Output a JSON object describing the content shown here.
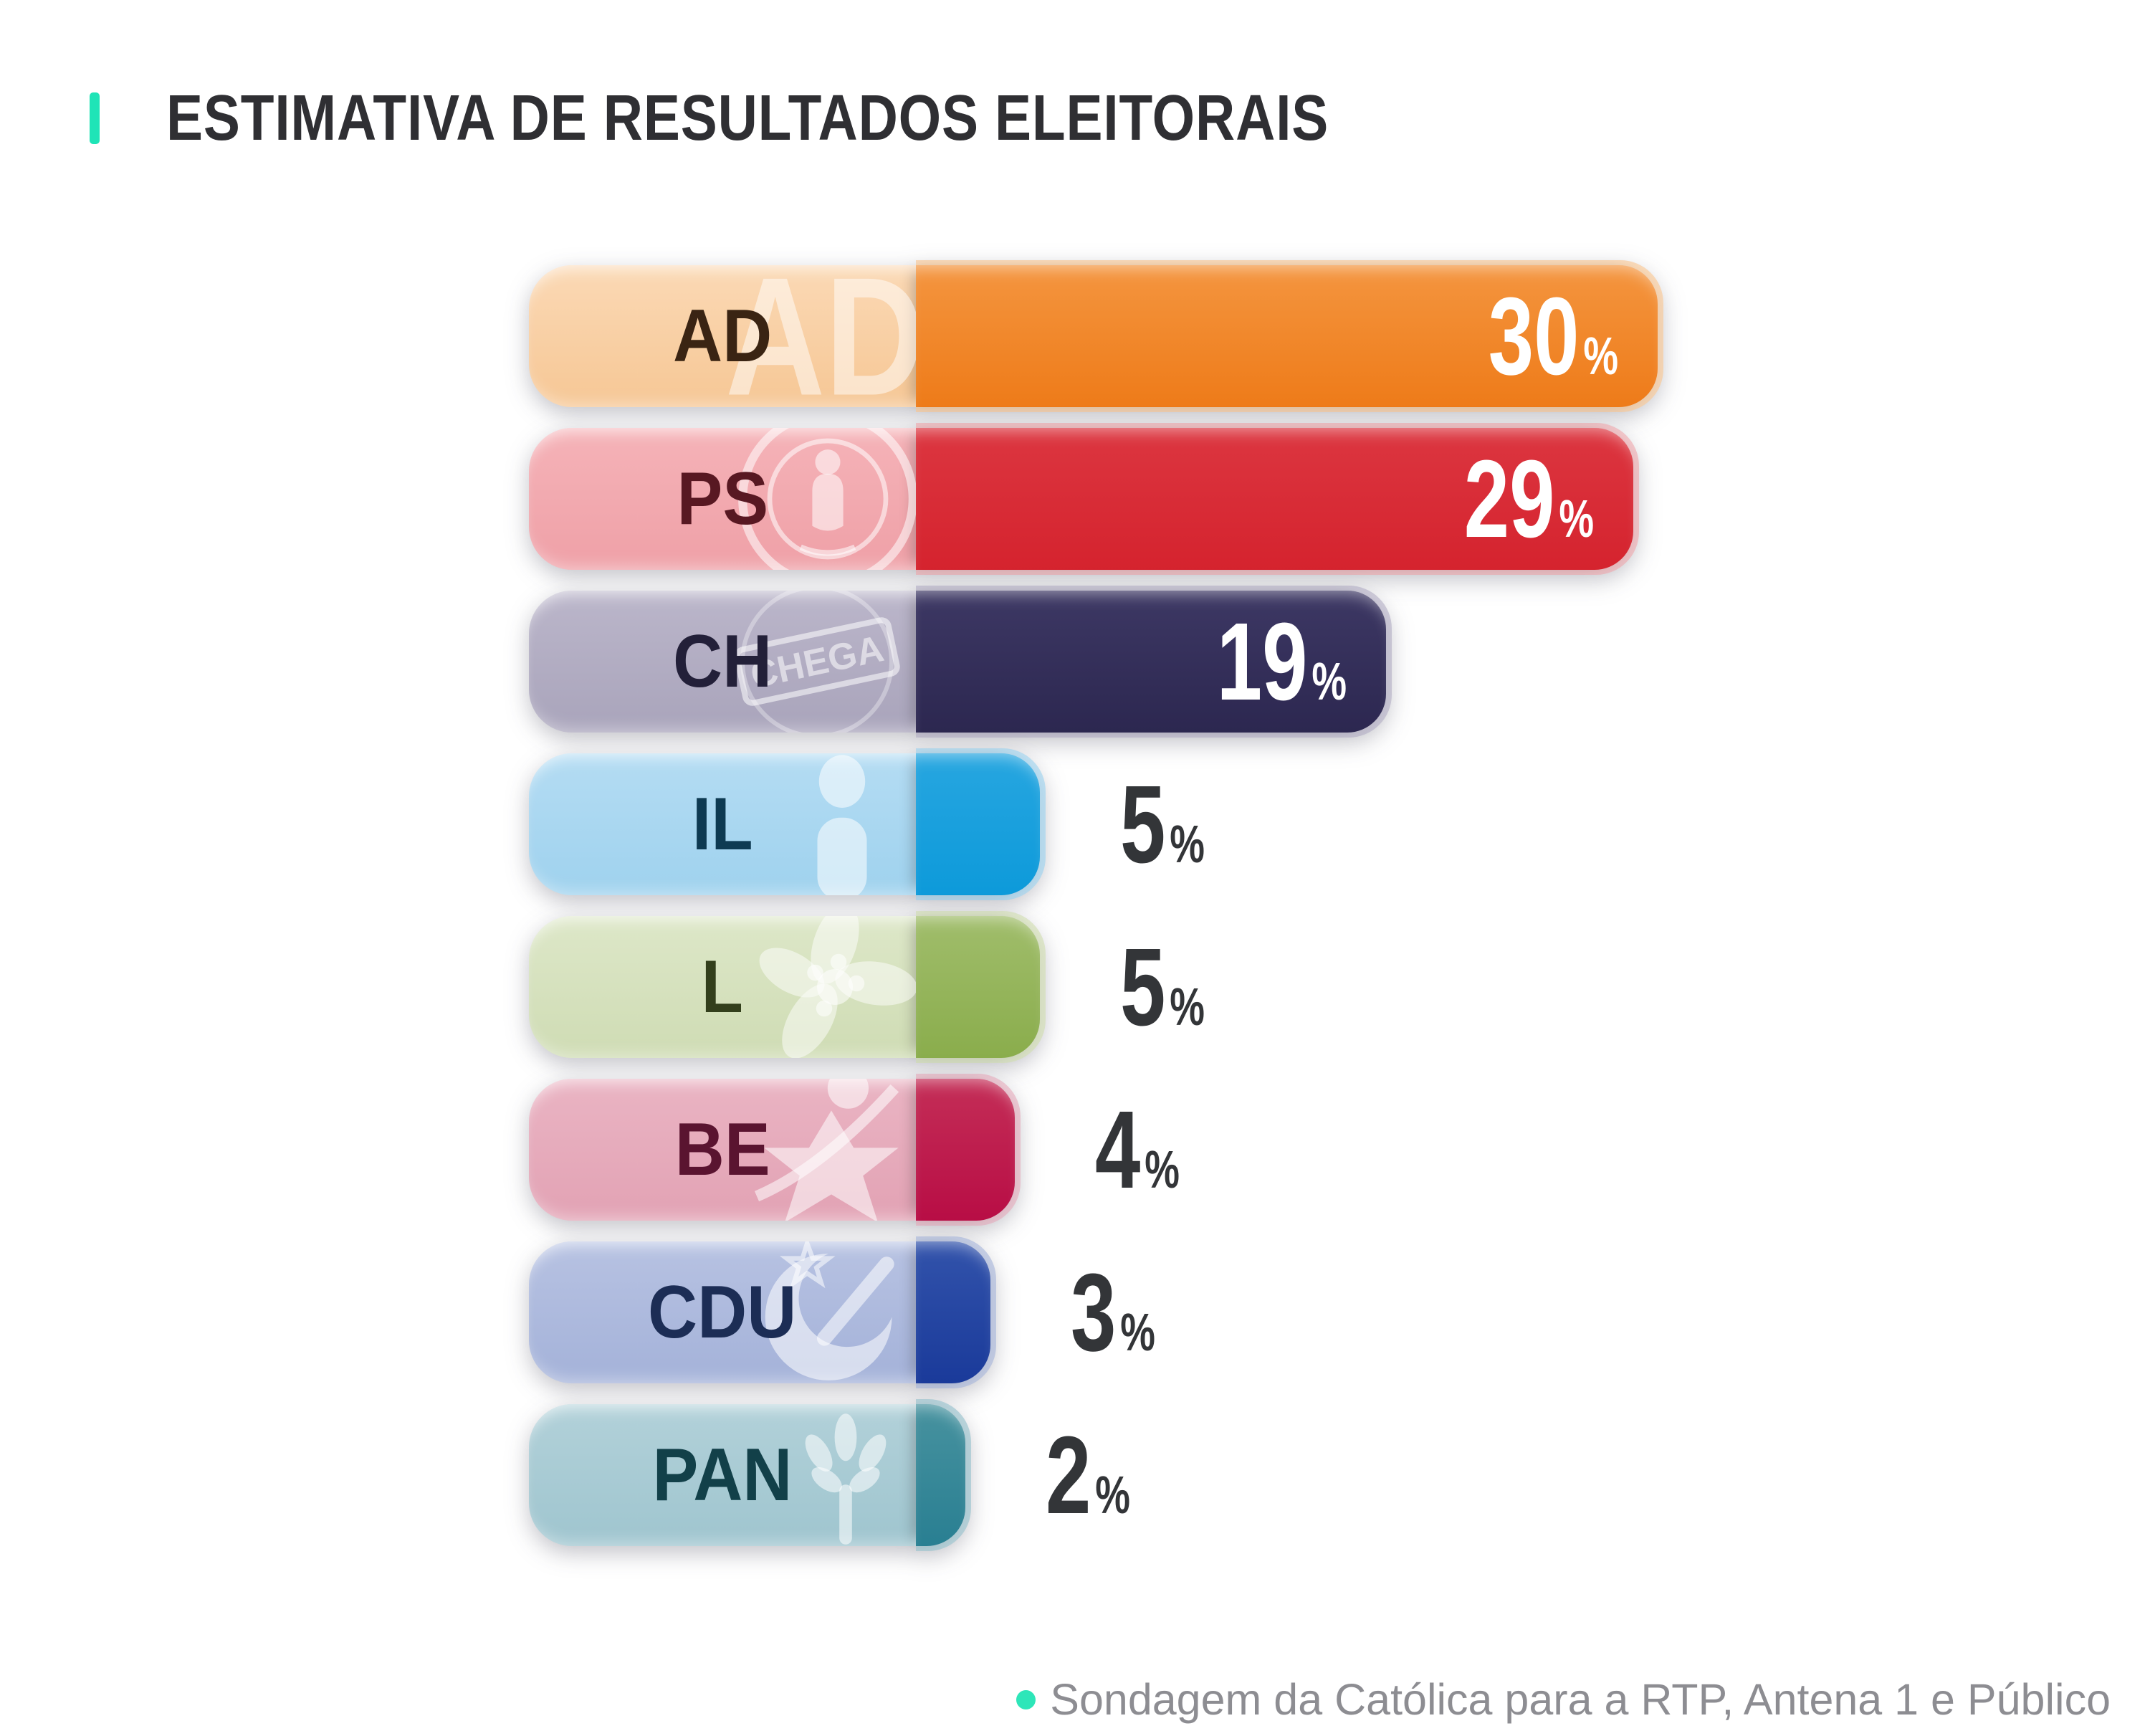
{
  "header": {
    "title": "ESTIMATIVA DE RESULTADOS ELEITORAIS",
    "accent_color": "#1FE4B7"
  },
  "source_note": {
    "text": "Sondagem da Católica para a RTP, Antena 1 e Público",
    "bullet_color": "#2EE6B9",
    "text_color": "#8D8D92"
  },
  "chart_data": {
    "type": "bar",
    "orientation": "horizontal",
    "title": "ESTIMATIVA DE RESULTADOS ELEITORAIS",
    "unit": "%",
    "categories": [
      "AD",
      "PS",
      "CH",
      "IL",
      "L",
      "BE",
      "CDU",
      "PAN"
    ],
    "values": [
      30,
      29,
      19,
      5,
      5,
      4,
      3,
      2
    ],
    "xlim": [
      0,
      30
    ],
    "grid": false,
    "legend": false,
    "source": "Sondagem da Católica para a RTP, Antena 1 e Público",
    "bars": [
      {
        "label": "AD",
        "value": 30,
        "value_label": "30",
        "inside": true,
        "icon": "ad-monogram",
        "watermark_text": "AD",
        "solid": "#EF8125",
        "solid_top": "#F4953F",
        "solid_bottom": "#EE7B19",
        "pale_top": "#FBD9B5",
        "pale_bottom": "#F6C795",
        "label_color": "#3A2413",
        "halo": "rgba(250,201,150,0.65)"
      },
      {
        "label": "PS",
        "value": 29,
        "value_label": "29",
        "inside": true,
        "icon": "ps-emblem",
        "watermark_text": "",
        "solid": "#D92C35",
        "solid_top": "#DC3640",
        "solid_bottom": "#D5232E",
        "pale_top": "#F5B3B8",
        "pale_bottom": "#EFA0A7",
        "label_color": "#581822",
        "halo": "rgba(240,166,172,0.6)"
      },
      {
        "label": "CH",
        "value": 19,
        "value_label": "19",
        "inside": true,
        "icon": "chega-stamp",
        "watermark_text": "CHEGA",
        "solid": "#332C55",
        "solid_top": "#3D3864",
        "solid_bottom": "#2C2750",
        "pale_top": "#BBB6CA",
        "pale_bottom": "#A9A4BB",
        "label_color": "#232039",
        "halo": "rgba(178,173,196,0.6)"
      },
      {
        "label": "IL",
        "value": 5,
        "value_label": "5",
        "inside": false,
        "icon": "il-person",
        "watermark_text": "",
        "solid": "#169EDC",
        "solid_top": "#27A6E0",
        "solid_bottom": "#0D9ADA",
        "pale_top": "#B4DCF3",
        "pale_bottom": "#9FD2EE",
        "label_color": "#0E3A52",
        "halo": "rgba(160,212,240,0.65)"
      },
      {
        "label": "L",
        "value": 5,
        "value_label": "5",
        "inside": false,
        "icon": "livre-flower",
        "watermark_text": "",
        "solid": "#94B456",
        "solid_top": "#A0BD6B",
        "solid_bottom": "#8AAD4C",
        "pale_top": "#DDE7C8",
        "pale_bottom": "#CFDCB4",
        "label_color": "#333F1C",
        "halo": "rgba(210,222,180,0.65)"
      },
      {
        "label": "BE",
        "value": 4,
        "value_label": "4",
        "inside": false,
        "icon": "be-star",
        "watermark_text": "",
        "solid": "#BE1C4E",
        "solid_top": "#C42E57",
        "solid_bottom": "#B80D45",
        "pale_top": "#EAB4C3",
        "pale_bottom": "#E2A2B4",
        "label_color": "#5A1430",
        "halo": "rgba(230,170,186,0.6)"
      },
      {
        "label": "CDU",
        "value": 3,
        "value_label": "3",
        "inside": false,
        "icon": "cdu-hammer-sickle",
        "watermark_text": "",
        "solid": "#2344A0",
        "solid_top": "#3253AB",
        "solid_bottom": "#1A3A9A",
        "pale_top": "#B7C2E2",
        "pale_bottom": "#A4B2D9",
        "label_color": "#1C2D55",
        "halo": "rgba(170,184,220,0.65)"
      },
      {
        "label": "PAN",
        "value": 2,
        "value_label": "2",
        "inside": false,
        "icon": "pan-tree",
        "watermark_text": "",
        "solid": "#338A9B",
        "solid_top": "#47929F",
        "solid_bottom": "#297F92",
        "pale_top": "#B2D1D9",
        "pale_bottom": "#9FC5CF",
        "label_color": "#124049",
        "halo": "rgba(160,198,208,0.7)"
      }
    ]
  }
}
